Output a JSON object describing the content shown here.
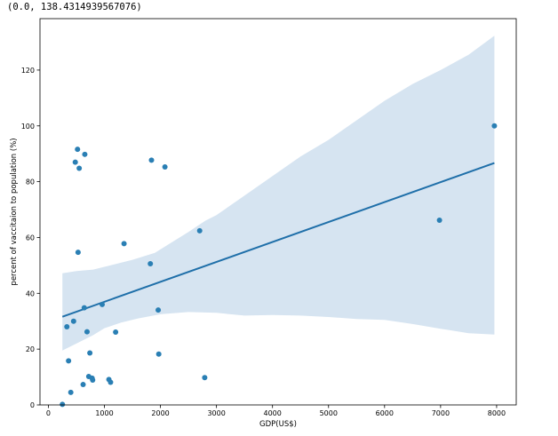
{
  "output": {
    "text": "(0.0, 138.4314939567076)"
  },
  "chart_data": {
    "type": "scatter",
    "xlabel": "GDP(US$)",
    "ylabel": "percent of vaccitaion to population (%)",
    "xlim": [
      -150,
      8350
    ],
    "ylim": [
      0,
      138.43
    ],
    "x_ticks": [
      0,
      1000,
      2000,
      3000,
      4000,
      5000,
      6000,
      7000,
      8000
    ],
    "y_ticks": [
      0,
      20,
      40,
      60,
      80,
      100,
      120
    ],
    "grid": false,
    "points": [
      {
        "x": 250,
        "y": 0.2
      },
      {
        "x": 330,
        "y": 28
      },
      {
        "x": 360,
        "y": 15.8
      },
      {
        "x": 400,
        "y": 4.5
      },
      {
        "x": 450,
        "y": 30
      },
      {
        "x": 480,
        "y": 87
      },
      {
        "x": 520,
        "y": 91.6
      },
      {
        "x": 530,
        "y": 54.7
      },
      {
        "x": 550,
        "y": 84.8
      },
      {
        "x": 620,
        "y": 7.3
      },
      {
        "x": 640,
        "y": 34.8
      },
      {
        "x": 650,
        "y": 89.8
      },
      {
        "x": 690,
        "y": 26.2
      },
      {
        "x": 720,
        "y": 10.2
      },
      {
        "x": 740,
        "y": 18.6
      },
      {
        "x": 780,
        "y": 9.6
      },
      {
        "x": 790,
        "y": 8.9
      },
      {
        "x": 960,
        "y": 36
      },
      {
        "x": 1080,
        "y": 9.1
      },
      {
        "x": 1110,
        "y": 8.1
      },
      {
        "x": 1200,
        "y": 26.1
      },
      {
        "x": 1350,
        "y": 57.8
      },
      {
        "x": 1820,
        "y": 50.6
      },
      {
        "x": 1840,
        "y": 87.7
      },
      {
        "x": 1960,
        "y": 34
      },
      {
        "x": 1970,
        "y": 18.2
      },
      {
        "x": 2080,
        "y": 85.3
      },
      {
        "x": 2700,
        "y": 62.4
      },
      {
        "x": 2790,
        "y": 9.8
      },
      {
        "x": 6980,
        "y": 66.2
      },
      {
        "x": 7960,
        "y": 100
      }
    ],
    "regression": {
      "x": [
        250,
        7960
      ],
      "y": [
        31.6,
        86.7
      ]
    },
    "ci_upper": [
      {
        "x": 250,
        "y": 47.2
      },
      {
        "x": 500,
        "y": 48.0
      },
      {
        "x": 800,
        "y": 48.5
      },
      {
        "x": 1000,
        "y": 49.5
      },
      {
        "x": 1500,
        "y": 52.0
      },
      {
        "x": 1900,
        "y": 54.5
      },
      {
        "x": 2100,
        "y": 57.0
      },
      {
        "x": 2500,
        "y": 62.0
      },
      {
        "x": 2800,
        "y": 66.0
      },
      {
        "x": 3000,
        "y": 68.0
      },
      {
        "x": 3500,
        "y": 75.0
      },
      {
        "x": 4000,
        "y": 82.0
      },
      {
        "x": 4500,
        "y": 89.0
      },
      {
        "x": 5000,
        "y": 95.0
      },
      {
        "x": 5500,
        "y": 102.0
      },
      {
        "x": 6000,
        "y": 109.0
      },
      {
        "x": 6500,
        "y": 115.0
      },
      {
        "x": 7000,
        "y": 120.0
      },
      {
        "x": 7500,
        "y": 125.5
      },
      {
        "x": 7960,
        "y": 132.3
      }
    ],
    "ci_lower": [
      {
        "x": 250,
        "y": 19.5
      },
      {
        "x": 500,
        "y": 22.0
      },
      {
        "x": 800,
        "y": 25.0
      },
      {
        "x": 1000,
        "y": 27.5
      },
      {
        "x": 1300,
        "y": 29.5
      },
      {
        "x": 1600,
        "y": 31.0
      },
      {
        "x": 2000,
        "y": 32.5
      },
      {
        "x": 2500,
        "y": 33.3
      },
      {
        "x": 3000,
        "y": 33.0
      },
      {
        "x": 3500,
        "y": 32.0
      },
      {
        "x": 4000,
        "y": 32.2
      },
      {
        "x": 4500,
        "y": 32.0
      },
      {
        "x": 5000,
        "y": 31.5
      },
      {
        "x": 5500,
        "y": 30.8
      },
      {
        "x": 6000,
        "y": 30.5
      },
      {
        "x": 6500,
        "y": 29.0
      },
      {
        "x": 7000,
        "y": 27.3
      },
      {
        "x": 7500,
        "y": 25.7
      },
      {
        "x": 7960,
        "y": 25.2
      }
    ],
    "colors": {
      "point": "#2a7fb4",
      "line": "#1f6fa9",
      "band": "#d6e4f1",
      "axis": "#000000"
    }
  }
}
